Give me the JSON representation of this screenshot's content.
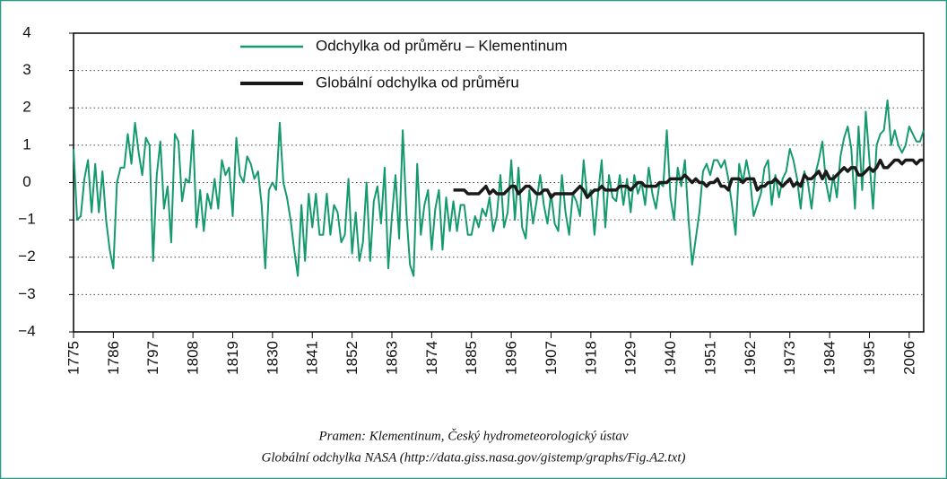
{
  "chart_data": {
    "type": "line",
    "caption": [
      "Pramen: Klementinum, Český hydrometeorologický ústav",
      "Globální odchylka NASA (http://data.giss.nasa.gov/gistemp/graphs/Fig.A2.txt)"
    ],
    "x": [
      1775,
      1776,
      1777,
      1778,
      1779,
      1780,
      1781,
      1782,
      1783,
      1784,
      1785,
      1786,
      1787,
      1788,
      1789,
      1790,
      1791,
      1792,
      1793,
      1794,
      1795,
      1796,
      1797,
      1798,
      1799,
      1800,
      1801,
      1802,
      1803,
      1804,
      1805,
      1806,
      1807,
      1808,
      1809,
      1810,
      1811,
      1812,
      1813,
      1814,
      1815,
      1816,
      1817,
      1818,
      1819,
      1820,
      1821,
      1822,
      1823,
      1824,
      1825,
      1826,
      1827,
      1828,
      1829,
      1830,
      1831,
      1832,
      1833,
      1834,
      1835,
      1836,
      1837,
      1838,
      1839,
      1840,
      1841,
      1842,
      1843,
      1844,
      1845,
      1846,
      1847,
      1848,
      1849,
      1850,
      1851,
      1852,
      1853,
      1854,
      1855,
      1856,
      1857,
      1858,
      1859,
      1860,
      1861,
      1862,
      1863,
      1864,
      1865,
      1866,
      1867,
      1868,
      1869,
      1870,
      1871,
      1872,
      1873,
      1874,
      1875,
      1876,
      1877,
      1878,
      1879,
      1880,
      1881,
      1882,
      1883,
      1884,
      1885,
      1886,
      1887,
      1888,
      1889,
      1890,
      1891,
      1892,
      1893,
      1894,
      1895,
      1896,
      1897,
      1898,
      1899,
      1900,
      1901,
      1902,
      1903,
      1904,
      1905,
      1906,
      1907,
      1908,
      1909,
      1910,
      1911,
      1912,
      1913,
      1914,
      1915,
      1916,
      1917,
      1918,
      1919,
      1920,
      1921,
      1922,
      1923,
      1924,
      1925,
      1926,
      1927,
      1928,
      1929,
      1930,
      1931,
      1932,
      1933,
      1934,
      1935,
      1936,
      1937,
      1938,
      1939,
      1940,
      1941,
      1942,
      1943,
      1944,
      1945,
      1946,
      1947,
      1948,
      1949,
      1950,
      1951,
      1952,
      1953,
      1954,
      1955,
      1956,
      1957,
      1958,
      1959,
      1960,
      1961,
      1962,
      1963,
      1964,
      1965,
      1966,
      1967,
      1968,
      1969,
      1970,
      1971,
      1972,
      1973,
      1974,
      1975,
      1976,
      1977,
      1978,
      1979,
      1980,
      1981,
      1982,
      1983,
      1984,
      1985,
      1986,
      1987,
      1988,
      1989,
      1990,
      1991,
      1992,
      1993,
      1994,
      1995,
      1996,
      1997,
      1998,
      1999,
      2000,
      2001,
      2002,
      2003,
      2004,
      2005,
      2006,
      2007,
      2008,
      2009,
      2010
    ],
    "series": [
      {
        "name": "Odchylka od průměru – Klementinum",
        "color": "#159a6c",
        "width": 2,
        "values": [
          0.9,
          -1.0,
          -0.9,
          0.1,
          0.6,
          -0.8,
          0.5,
          -0.8,
          0.3,
          -1.0,
          -1.8,
          -2.3,
          0.0,
          0.4,
          0.4,
          1.3,
          0.5,
          1.6,
          0.8,
          0.2,
          1.2,
          1.0,
          -2.1,
          0.2,
          1.1,
          -0.7,
          -0.1,
          -1.6,
          1.3,
          1.1,
          -0.5,
          0.1,
          0.0,
          1.4,
          -1.2,
          -0.2,
          -1.3,
          -0.3,
          -0.7,
          0.1,
          -0.7,
          0.6,
          0.2,
          0.4,
          -0.9,
          1.2,
          0.2,
          0.0,
          0.7,
          0.5,
          0.1,
          0.3,
          -0.6,
          -2.3,
          -0.2,
          0.0,
          -0.2,
          1.6,
          0.0,
          -0.4,
          -1.0,
          -1.8,
          -2.5,
          -0.6,
          -2.1,
          -0.3,
          -1.2,
          -0.3,
          -1.4,
          -1.4,
          -0.3,
          -1.4,
          -0.6,
          -0.8,
          -1.6,
          -1.4,
          0.1,
          -1.9,
          -0.8,
          -2.1,
          -1.6,
          0.0,
          -2.1,
          -0.5,
          -0.1,
          -1.1,
          0.4,
          -2.3,
          -0.9,
          0.2,
          -1.5,
          1.4,
          -0.8,
          -2.2,
          -2.5,
          0.5,
          -1.4,
          -0.6,
          -0.2,
          -1.8,
          -0.7,
          -0.2,
          -1.8,
          -0.4,
          -1.3,
          -0.5,
          -1.3,
          -0.6,
          -0.6,
          -1.4,
          -1.4,
          -0.9,
          -1.2,
          -0.7,
          -0.9,
          -0.4,
          -1.3,
          -0.9,
          0.2,
          -1.2,
          -0.8,
          0.6,
          -1.0,
          0.4,
          -1.2,
          -1.5,
          -0.2,
          -1.1,
          -0.5,
          0.2,
          -0.6,
          -1.1,
          -0.3,
          -1.1,
          -1.3,
          0.2,
          -0.8,
          -1.4,
          -0.3,
          -0.5,
          -0.9,
          0.6,
          -0.4,
          -0.2,
          -1.4,
          -0.3,
          0.6,
          -1.2,
          0.2,
          -0.4,
          -0.5,
          0.2,
          -0.6,
          0.1,
          -0.8,
          0.2,
          -0.3,
          0.0,
          -0.6,
          0.4,
          -0.3,
          -0.7,
          0.0,
          -0.1,
          1.4,
          -0.4,
          -1.0,
          0.4,
          -0.1,
          0.6,
          -1.0,
          -2.2,
          -1.5,
          -0.8,
          0.3,
          0.5,
          0.2,
          0.6,
          0.6,
          0.4,
          0.6,
          0.1,
          -0.6,
          -1.4,
          0.5,
          0.0,
          0.6,
          0.1,
          -0.9,
          -0.6,
          -0.3,
          0.4,
          0.6,
          -0.6,
          0.2,
          -0.4,
          0.1,
          0.3,
          0.9,
          0.6,
          0.1,
          -0.7,
          0.3,
          0.0,
          -0.7,
          0.2,
          0.6,
          1.1,
          0.0,
          -0.5,
          0.2,
          -0.4,
          0.7,
          1.2,
          1.5,
          0.9,
          -0.7,
          1.5,
          -0.2,
          1.9,
          0.6,
          -0.7,
          1.0,
          1.3,
          1.4,
          2.2,
          1.0,
          1.4,
          1.0,
          0.8,
          1.0,
          1.5,
          1.3,
          1.1,
          1.1,
          1.4
        ]
      },
      {
        "name": "Globální odchylka od průměru",
        "color": "#1a1a1a",
        "width": 3.5,
        "values": [
          null,
          null,
          null,
          null,
          null,
          null,
          null,
          null,
          null,
          null,
          null,
          null,
          null,
          null,
          null,
          null,
          null,
          null,
          null,
          null,
          null,
          null,
          null,
          null,
          null,
          null,
          null,
          null,
          null,
          null,
          null,
          null,
          null,
          null,
          null,
          null,
          null,
          null,
          null,
          null,
          null,
          null,
          null,
          null,
          null,
          null,
          null,
          null,
          null,
          null,
          null,
          null,
          null,
          null,
          null,
          null,
          null,
          null,
          null,
          null,
          null,
          null,
          null,
          null,
          null,
          null,
          null,
          null,
          null,
          null,
          null,
          null,
          null,
          null,
          null,
          null,
          null,
          null,
          null,
          null,
          null,
          null,
          null,
          null,
          null,
          null,
          null,
          null,
          null,
          null,
          null,
          null,
          null,
          null,
          null,
          null,
          null,
          null,
          null,
          null,
          null,
          null,
          null,
          null,
          null,
          -0.2,
          -0.2,
          -0.2,
          -0.2,
          -0.3,
          -0.3,
          -0.3,
          -0.3,
          -0.2,
          -0.1,
          -0.3,
          -0.2,
          -0.3,
          -0.3,
          -0.3,
          -0.2,
          -0.1,
          -0.1,
          -0.3,
          -0.2,
          -0.1,
          -0.1,
          -0.2,
          -0.3,
          -0.3,
          -0.2,
          -0.2,
          -0.4,
          -0.3,
          -0.3,
          -0.3,
          -0.3,
          -0.3,
          -0.3,
          -0.2,
          -0.1,
          -0.2,
          -0.4,
          -0.3,
          -0.2,
          -0.2,
          -0.1,
          -0.2,
          -0.2,
          -0.2,
          -0.2,
          -0.1,
          -0.1,
          -0.1,
          -0.2,
          -0.1,
          0.0,
          0.0,
          -0.1,
          -0.1,
          -0.1,
          -0.1,
          0.0,
          0.0,
          0.0,
          0.1,
          0.1,
          0.1,
          0.1,
          0.2,
          0.1,
          0.0,
          0.1,
          0.0,
          0.0,
          -0.1,
          0.0,
          0.0,
          0.1,
          -0.1,
          -0.1,
          -0.2,
          0.1,
          0.1,
          0.1,
          0.0,
          0.1,
          0.1,
          0.1,
          -0.2,
          -0.1,
          -0.1,
          0.0,
          0.0,
          0.1,
          0.0,
          -0.1,
          0.0,
          0.1,
          -0.1,
          0.0,
          -0.1,
          0.2,
          0.1,
          0.1,
          0.2,
          0.3,
          0.1,
          0.3,
          0.1,
          0.1,
          0.2,
          0.3,
          0.4,
          0.3,
          0.4,
          0.4,
          0.2,
          0.2,
          0.3,
          0.4,
          0.3,
          0.4,
          0.6,
          0.4,
          0.4,
          0.5,
          0.6,
          0.6,
          0.5,
          0.6,
          0.6,
          0.6,
          0.5,
          0.6,
          0.6
        ]
      }
    ],
    "xlim": [
      1775,
      2010
    ],
    "xticks": [
      1775,
      1786,
      1797,
      1808,
      1819,
      1830,
      1841,
      1852,
      1863,
      1874,
      1885,
      1896,
      1907,
      1918,
      1929,
      1940,
      1951,
      1962,
      1973,
      1984,
      1995,
      2006
    ],
    "ylim": [
      -4,
      4
    ],
    "yticks": [
      {
        "value": -4,
        "label": "−4"
      },
      {
        "value": -3,
        "label": "−3"
      },
      {
        "value": -2,
        "label": "−2"
      },
      {
        "value": -1,
        "label": "−1"
      },
      0,
      1,
      2,
      3,
      4
    ],
    "grid": true
  }
}
